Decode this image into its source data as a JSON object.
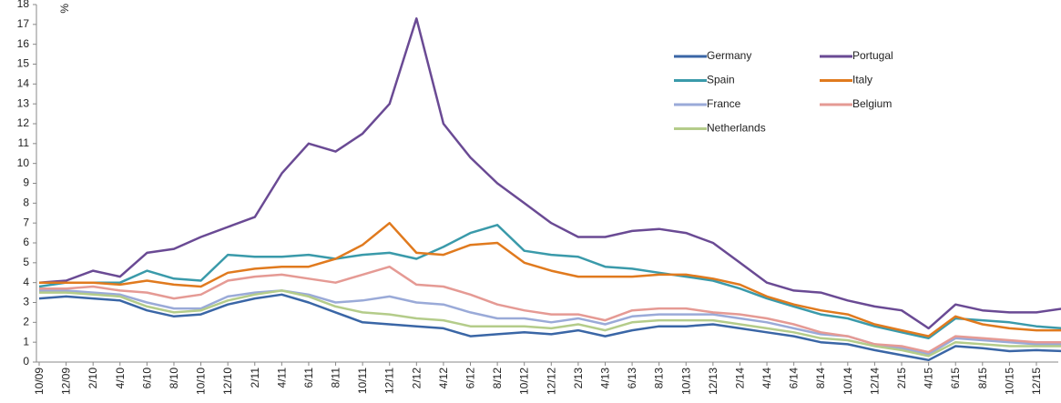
{
  "chart_data": {
    "type": "line",
    "y_label": "%",
    "categories": [
      "10/09",
      "12/09",
      "2/10",
      "4/10",
      "6/10",
      "8/10",
      "10/10",
      "12/10",
      "2/11",
      "4/11",
      "6/11",
      "8/11",
      "10/11",
      "12/11",
      "2/12",
      "4/12",
      "6/12",
      "8/12",
      "10/12",
      "12/12",
      "2/13",
      "4/13",
      "6/13",
      "8/13",
      "10/13",
      "12/13",
      "2/14",
      "4/14",
      "6/14",
      "8/14",
      "10/14",
      "12/14",
      "2/15",
      "4/15",
      "6/15",
      "8/15",
      "10/15",
      "12/15",
      null
    ],
    "series": [
      {
        "name": "Germany",
        "color": "#3a66a6",
        "values": [
          3.2,
          3.3,
          3.2,
          3.1,
          2.6,
          2.3,
          2.4,
          2.9,
          3.2,
          3.4,
          3.0,
          2.5,
          2.0,
          1.9,
          1.8,
          1.7,
          1.3,
          1.4,
          1.5,
          1.4,
          1.6,
          1.3,
          1.6,
          1.8,
          1.8,
          1.9,
          1.7,
          1.5,
          1.3,
          1.0,
          0.9,
          0.6,
          0.35,
          0.1,
          0.8,
          0.7,
          0.55,
          0.6,
          0.55
        ]
      },
      {
        "name": "Portugal",
        "color": "#6a4a94",
        "values": [
          4.0,
          4.1,
          4.6,
          4.3,
          5.5,
          5.7,
          6.3,
          6.8,
          7.3,
          9.5,
          11.0,
          10.6,
          11.5,
          13.0,
          17.3,
          12.0,
          10.3,
          9.0,
          8.0,
          7.0,
          6.3,
          6.3,
          6.6,
          6.7,
          6.5,
          6.0,
          5.0,
          4.0,
          3.6,
          3.5,
          3.1,
          2.8,
          2.6,
          1.7,
          2.9,
          2.6,
          2.5,
          2.5,
          2.7
        ]
      },
      {
        "name": "Spain",
        "color": "#3a9aaa",
        "values": [
          3.8,
          4.0,
          4.0,
          4.0,
          4.6,
          4.2,
          4.1,
          5.4,
          5.3,
          5.3,
          5.4,
          5.2,
          5.4,
          5.5,
          5.2,
          5.8,
          6.5,
          6.9,
          5.6,
          5.4,
          5.3,
          4.8,
          4.7,
          4.5,
          4.3,
          4.1,
          3.7,
          3.2,
          2.8,
          2.4,
          2.2,
          1.8,
          1.5,
          1.2,
          2.2,
          2.1,
          2.0,
          1.8,
          1.7
        ]
      },
      {
        "name": "Italy",
        "color": "#e07a1e",
        "values": [
          4.0,
          4.0,
          4.0,
          3.9,
          4.1,
          3.9,
          3.8,
          4.5,
          4.7,
          4.8,
          4.8,
          5.2,
          5.9,
          7.0,
          5.5,
          5.4,
          5.9,
          6.0,
          5.0,
          4.6,
          4.3,
          4.3,
          4.3,
          4.4,
          4.4,
          4.2,
          3.9,
          3.3,
          2.9,
          2.6,
          2.4,
          1.9,
          1.6,
          1.3,
          2.3,
          1.9,
          1.7,
          1.6,
          1.6
        ]
      },
      {
        "name": "France",
        "color": "#9aaad8",
        "values": [
          3.6,
          3.6,
          3.5,
          3.4,
          3.0,
          2.7,
          2.7,
          3.3,
          3.5,
          3.6,
          3.4,
          3.0,
          3.1,
          3.3,
          3.0,
          2.9,
          2.5,
          2.2,
          2.2,
          2.0,
          2.2,
          1.9,
          2.3,
          2.4,
          2.4,
          2.4,
          2.2,
          2.0,
          1.7,
          1.4,
          1.3,
          0.9,
          0.7,
          0.4,
          1.2,
          1.1,
          1.0,
          0.9,
          0.9
        ]
      },
      {
        "name": "Belgium",
        "color": "#e59a94",
        "values": [
          3.7,
          3.7,
          3.8,
          3.6,
          3.5,
          3.2,
          3.4,
          4.1,
          4.3,
          4.4,
          4.2,
          4.0,
          4.4,
          4.8,
          3.9,
          3.8,
          3.4,
          2.9,
          2.6,
          2.4,
          2.4,
          2.1,
          2.6,
          2.7,
          2.7,
          2.5,
          2.4,
          2.2,
          1.9,
          1.5,
          1.3,
          0.9,
          0.8,
          0.5,
          1.3,
          1.2,
          1.1,
          1.0,
          1.0
        ]
      },
      {
        "name": "Netherlands",
        "color": "#b4cc8a",
        "values": [
          3.5,
          3.5,
          3.4,
          3.3,
          2.8,
          2.5,
          2.6,
          3.1,
          3.4,
          3.6,
          3.3,
          2.8,
          2.5,
          2.4,
          2.2,
          2.1,
          1.8,
          1.8,
          1.8,
          1.7,
          1.9,
          1.6,
          2.0,
          2.1,
          2.1,
          2.1,
          1.9,
          1.7,
          1.5,
          1.2,
          1.1,
          0.8,
          0.6,
          0.3,
          1.0,
          0.9,
          0.8,
          0.8,
          0.8
        ]
      }
    ],
    "ylim": [
      0,
      18
    ],
    "yticks": [
      0,
      1,
      2,
      3,
      4,
      5,
      6,
      7,
      8,
      9,
      10,
      11,
      12,
      13,
      14,
      15,
      16,
      17,
      18
    ],
    "grid": false
  }
}
